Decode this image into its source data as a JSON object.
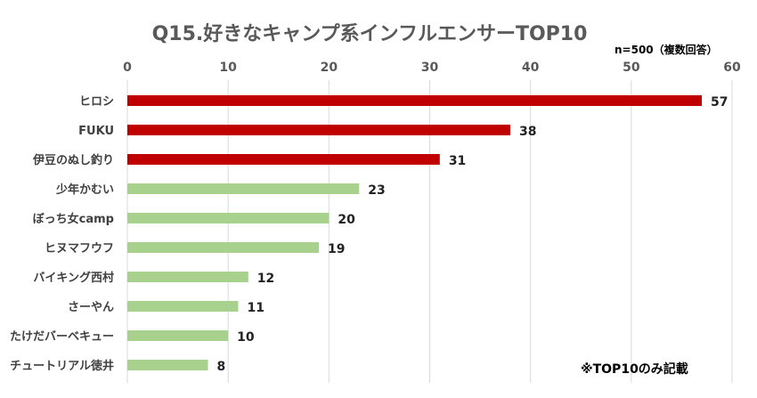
{
  "chart_data": {
    "type": "bar",
    "orientation": "horizontal",
    "title": "Q15.好きなキャンプ系インフルエンサーTOP10",
    "subtitle": "n=500（複数回答）",
    "note": "※TOP10のみ記載",
    "categories": [
      "ヒロシ",
      "FUKU",
      "伊豆のぬし釣り",
      "少年かむい",
      "ぼっち女camp",
      "ヒヌマフウフ",
      "バイキング西村",
      "さーやん",
      "たけだバーベキュー",
      "チュートリアル徳井"
    ],
    "values": [
      57,
      38,
      31,
      23,
      20,
      19,
      12,
      11,
      10,
      8
    ],
    "bar_colors": [
      "#C00000",
      "#C00000",
      "#C00000",
      "#A9D18E",
      "#A9D18E",
      "#A9D18E",
      "#A9D18E",
      "#A9D18E",
      "#A9D18E",
      "#A9D18E"
    ],
    "xlim": [
      0,
      60
    ],
    "x_ticks": [
      "0",
      "10",
      "20",
      "30",
      "40",
      "50",
      "60"
    ],
    "axis_position": "top",
    "grid": true,
    "grid_color": "#D9D9D9"
  }
}
